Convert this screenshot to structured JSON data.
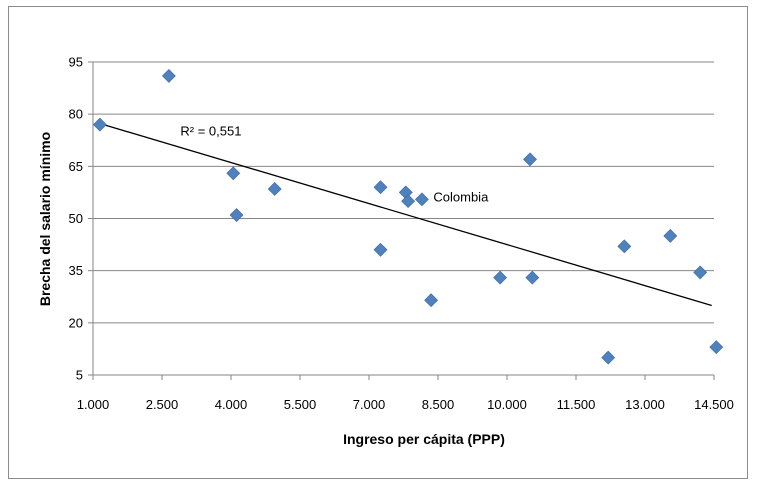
{
  "chart_data": {
    "type": "scatter",
    "title": "",
    "xlabel": "Ingreso per cápita (PPP)",
    "ylabel": "Brecha del salario mínimo",
    "xlim": [
      1000,
      14500
    ],
    "ylim": [
      5,
      95
    ],
    "x_ticks": [
      1000,
      2500,
      4000,
      5500,
      7000,
      8500,
      10000,
      11500,
      13000,
      14500
    ],
    "x_tick_labels": [
      "1.000",
      "2.500",
      "4.000",
      "5.500",
      "7.000",
      "8.500",
      "10.000",
      "11.500",
      "13.000",
      "14.500"
    ],
    "y_ticks": [
      5,
      20,
      35,
      50,
      65,
      80,
      95
    ],
    "y_tick_labels": [
      "5",
      "20",
      "35",
      "50",
      "65",
      "80",
      "95"
    ],
    "grid": "horizontal",
    "marker_color": "#4f81bd",
    "points": [
      {
        "x": 1150,
        "y": 77
      },
      {
        "x": 2650,
        "y": 91
      },
      {
        "x": 4050,
        "y": 63
      },
      {
        "x": 4120,
        "y": 51
      },
      {
        "x": 4950,
        "y": 58.5
      },
      {
        "x": 7250,
        "y": 59
      },
      {
        "x": 7250,
        "y": 41
      },
      {
        "x": 7800,
        "y": 57.5
      },
      {
        "x": 7850,
        "y": 55
      },
      {
        "x": 8150,
        "y": 55.5
      },
      {
        "x": 8350,
        "y": 26.5
      },
      {
        "x": 9850,
        "y": 33
      },
      {
        "x": 10500,
        "y": 67
      },
      {
        "x": 10550,
        "y": 33
      },
      {
        "x": 12200,
        "y": 10
      },
      {
        "x": 12550,
        "y": 42
      },
      {
        "x": 13550,
        "y": 45
      },
      {
        "x": 14200,
        "y": 34.5
      },
      {
        "x": 14550,
        "y": 13
      }
    ],
    "trendline": {
      "x": [
        1100,
        14450
      ],
      "y": [
        77.5,
        25
      ]
    },
    "annotations": [
      {
        "text": "R² = 0,551",
        "x": 2900,
        "y": 75
      },
      {
        "text": "Colombia",
        "x": 8400,
        "y": 56
      }
    ]
  }
}
